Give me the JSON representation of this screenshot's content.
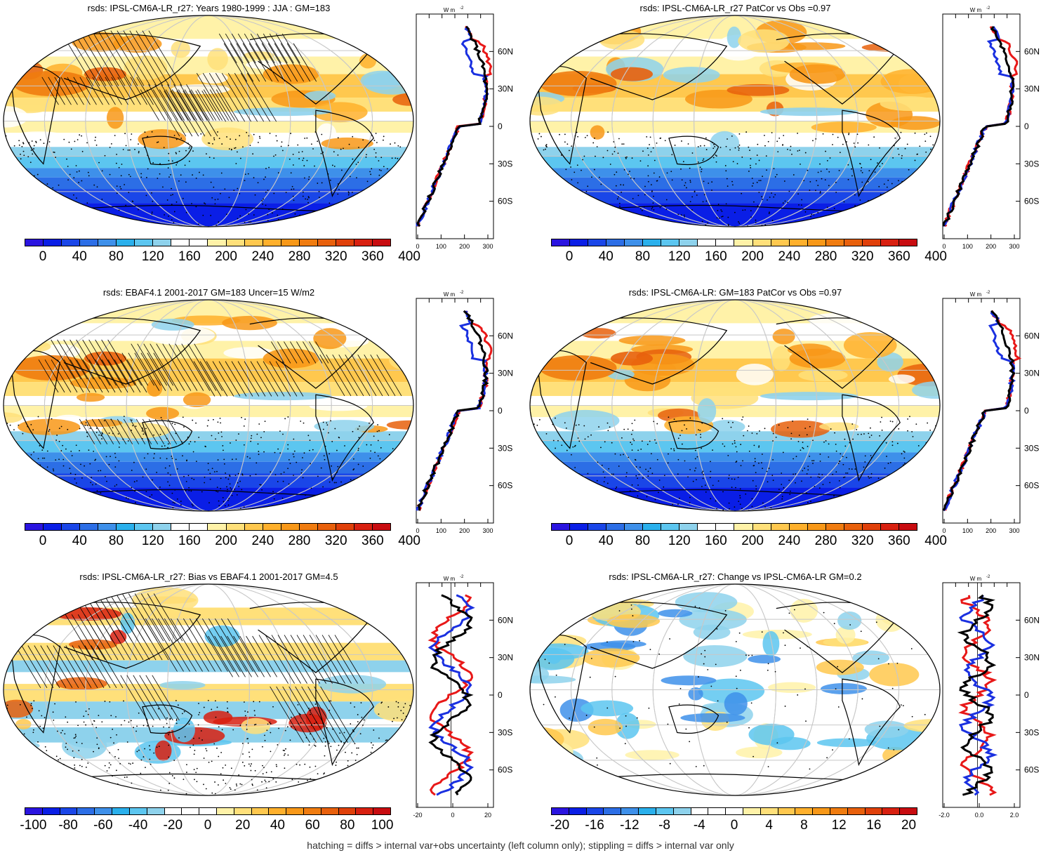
{
  "panels": [
    {
      "id": "tl",
      "title": "rsds: IPSL-CM6A-LR_r27: Years 1980-1999 : JJA : GM=183",
      "kind": "abs",
      "hatched": true,
      "colorbar": {
        "ticks": [
          "0",
          "40",
          "80",
          "120",
          "160",
          "200",
          "240",
          "280",
          "320",
          "360",
          "400"
        ]
      },
      "zonal": {
        "xticks": [
          "0",
          "100",
          "200",
          "300"
        ]
      }
    },
    {
      "id": "tr",
      "title": "rsds: IPSL-CM6A-LR_r27 PatCor vs Obs =0.97",
      "kind": "abs",
      "hatched": false,
      "colorbar": {
        "ticks": [
          "0",
          "40",
          "80",
          "120",
          "160",
          "200",
          "240",
          "280",
          "320",
          "360",
          "400"
        ]
      },
      "zonal": {
        "xticks": [
          "0",
          "100",
          "200",
          "300"
        ]
      }
    },
    {
      "id": "ml",
      "title": "rsds: EBAF4.1 2001-2017 GM=183 Uncer=15 W/m2",
      "kind": "abs",
      "hatched": true,
      "colorbar": {
        "ticks": [
          "0",
          "40",
          "80",
          "120",
          "160",
          "200",
          "240",
          "280",
          "320",
          "360",
          "400"
        ]
      },
      "zonal": {
        "xticks": [
          "0",
          "100",
          "200",
          "300"
        ]
      }
    },
    {
      "id": "mr",
      "title": "rsds: IPSL-CM6A-LR: GM=183 PatCor vs Obs =0.97",
      "kind": "abs",
      "hatched": false,
      "colorbar": {
        "ticks": [
          "0",
          "40",
          "80",
          "120",
          "160",
          "200",
          "240",
          "280",
          "320",
          "360",
          "400"
        ]
      },
      "zonal": {
        "xticks": [
          "0",
          "100",
          "200",
          "300"
        ]
      }
    },
    {
      "id": "bl",
      "title": "rsds: IPSL-CM6A-LR_r27: Bias vs EBAF4.1 2001-2017 GM=4.5",
      "kind": "bias",
      "hatched": true,
      "colorbar": {
        "ticks": [
          "-100",
          "-80",
          "-60",
          "-40",
          "-20",
          "0",
          "20",
          "40",
          "60",
          "80",
          "100"
        ]
      },
      "zonal": {
        "xticks": [
          "-20",
          "0",
          "20"
        ]
      }
    },
    {
      "id": "br",
      "title": "rsds: IPSL-CM6A-LR_r27: Change vs IPSL-CM6A-LR GM=0.2",
      "kind": "change",
      "hatched": false,
      "colorbar": {
        "ticks": [
          "-20",
          "-16",
          "-12",
          "-8",
          "-4",
          "0",
          "4",
          "8",
          "12",
          "16",
          "20"
        ]
      },
      "zonal": {
        "xticks": [
          "-2.0",
          "0.0",
          "2.0"
        ]
      }
    }
  ],
  "zonal_units": "W m",
  "zonal_units_exp": "-2",
  "lat_labels": [
    "60N",
    "30N",
    "0",
    "30S",
    "60S"
  ],
  "palette_abs": [
    "#2a14e0",
    "#0a1ee6",
    "#1a46e8",
    "#2c6ee6",
    "#3e90ea",
    "#2ab0ec",
    "#5cc6f0",
    "#8ed2ec",
    "#ffffff",
    "#ffffff",
    "#fff2a8",
    "#ffe07a",
    "#ffc84e",
    "#ffb02c",
    "#f89818",
    "#f07c10",
    "#e8600c",
    "#e0400a",
    "#d82010",
    "#c80c10"
  ],
  "palette_div": [
    "#2a14e0",
    "#0a1ee6",
    "#1a46e8",
    "#2c6ee6",
    "#3e90ea",
    "#2ab0ec",
    "#5cc6f0",
    "#8ed2ec",
    "#ffffff",
    "#ffffff",
    "#ffffff",
    "#fff2a8",
    "#ffe07a",
    "#ffc84e",
    "#ffb02c",
    "#f89818",
    "#f07c10",
    "#e8600c",
    "#e0400a",
    "#d82010",
    "#c80c10"
  ],
  "line_colors": {
    "model": "#000000",
    "obs": "#1a30e0",
    "other": "#e81818"
  },
  "footer": "hatching = diffs > internal var+obs uncertainty (left column only); stippling = diffs > internal var only"
}
